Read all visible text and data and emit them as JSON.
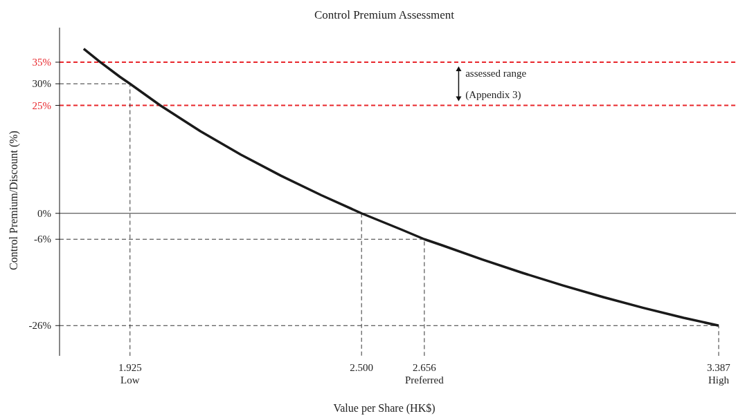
{
  "chart_data": {
    "type": "line",
    "title": "Control Premium Assessment",
    "xlabel": "Value per Share (HK$)",
    "ylabel": "Control Premium/Discount (%)",
    "xlim": [
      1.75,
      3.43
    ],
    "ylim": [
      -33,
      43
    ],
    "xticks": [
      {
        "value": 1.925,
        "label": "1.925\nLow"
      },
      {
        "value": 2.5,
        "label": "2.500"
      },
      {
        "value": 2.656,
        "label": "2.656\nPreferred"
      },
      {
        "value": 3.387,
        "label": "3.387\nHigh"
      }
    ],
    "yticks": [
      {
        "value": 35,
        "label": "35%"
      },
      {
        "value": 30,
        "label": "30%"
      },
      {
        "value": 25,
        "label": "25%"
      },
      {
        "value": 0,
        "label": "0%"
      },
      {
        "value": -6,
        "label": "-6%"
      },
      {
        "value": -26,
        "label": "-26%"
      }
    ],
    "grid": false,
    "marker": "none",
    "series": [
      {
        "color": "#1a1a1a",
        "line_style": "solid",
        "x": [
          1.81,
          1.85,
          1.9,
          1.925,
          2.0,
          2.1,
          2.2,
          2.3,
          2.4,
          2.5,
          2.6,
          2.656,
          2.7,
          2.8,
          2.9,
          3.0,
          3.1,
          3.2,
          3.3,
          3.387
        ],
        "values": [
          38.1,
          35.1,
          31.6,
          30,
          25,
          19,
          13.6,
          8.7,
          4.2,
          0,
          -3.8,
          -6,
          -7.4,
          -10.7,
          -13.8,
          -16.7,
          -19.4,
          -21.9,
          -24.2,
          -26
        ]
      },
      {
        "color": "#333333",
        "line_style": "dashed",
        "x": [
          1.75,
          1.925,
          1.925
        ],
        "values": [
          30,
          30,
          -33
        ]
      },
      {
        "color": "#333333",
        "line_style": "dashed",
        "x": [
          2.5,
          2.5
        ],
        "values": [
          0,
          -33
        ]
      },
      {
        "color": "#333333",
        "line_style": "dashed",
        "x": [
          1.75,
          2.656,
          2.656
        ],
        "values": [
          -6,
          -6,
          -33
        ]
      },
      {
        "color": "#333333",
        "line_style": "dashed",
        "x": [
          1.75,
          3.387,
          3.387
        ],
        "values": [
          -26,
          -26,
          -33
        ]
      }
    ],
    "ref_lines": [
      {
        "axis": "y",
        "value": 35,
        "color": "#e8262b",
        "line_style": "dashed"
      },
      {
        "axis": "y",
        "value": 25,
        "color": "#e8262b",
        "line_style": "dashed"
      },
      {
        "axis": "y",
        "value": 0,
        "color": "#333333",
        "line_style": "solid"
      }
    ],
    "annotations": [
      "assessed range",
      "(Appendix 3)"
    ]
  }
}
